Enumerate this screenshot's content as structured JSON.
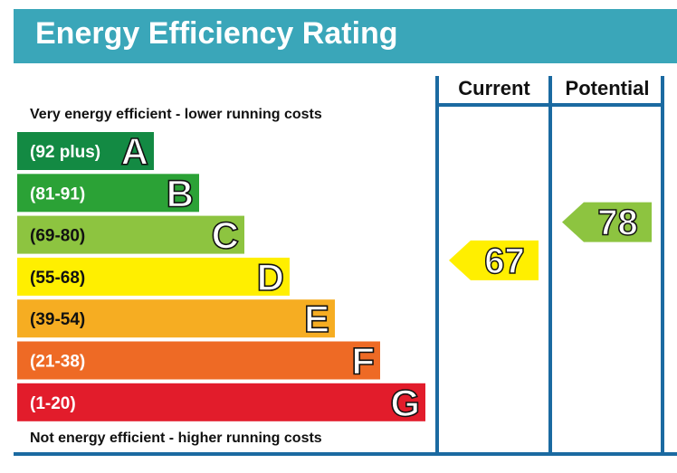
{
  "header": {
    "title": "Energy Efficiency Rating"
  },
  "chart_data": {
    "type": "bar",
    "top_note": "Very energy efficient - lower running costs",
    "bottom_note": "Not energy efficient - higher running costs",
    "bands": [
      {
        "letter": "A",
        "range": "(92 plus)",
        "color": "#138a43"
      },
      {
        "letter": "B",
        "range": "(81-91)",
        "color": "#2ba236"
      },
      {
        "letter": "C",
        "range": "(69-80)",
        "color": "#8dc440"
      },
      {
        "letter": "D",
        "range": "(55-68)",
        "color": "#ffef00"
      },
      {
        "letter": "E",
        "range": "(39-54)",
        "color": "#f6ad22"
      },
      {
        "letter": "F",
        "range": "(21-38)",
        "color": "#ee6a25"
      },
      {
        "letter": "G",
        "range": "(1-20)",
        "color": "#e21c2b"
      }
    ],
    "columns": [
      "Current",
      "Potential"
    ],
    "current": {
      "value": 67,
      "band": "D",
      "color": "#ffef00"
    },
    "potential": {
      "value": 78,
      "band": "C",
      "color": "#8dc440"
    },
    "frame_color": "#1b6aa1"
  }
}
